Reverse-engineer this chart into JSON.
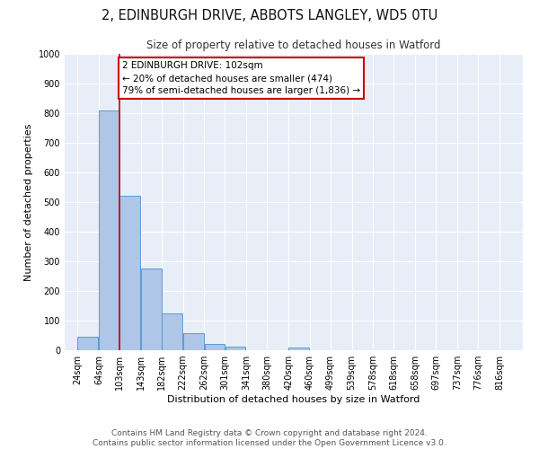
{
  "title": "2, EDINBURGH DRIVE, ABBOTS LANGLEY, WD5 0TU",
  "subtitle": "Size of property relative to detached houses in Watford",
  "xlabel": "Distribution of detached houses by size in Watford",
  "ylabel": "Number of detached properties",
  "bin_labels": [
    "24sqm",
    "64sqm",
    "103sqm",
    "143sqm",
    "182sqm",
    "222sqm",
    "262sqm",
    "301sqm",
    "341sqm",
    "380sqm",
    "420sqm",
    "460sqm",
    "499sqm",
    "539sqm",
    "578sqm",
    "618sqm",
    "658sqm",
    "697sqm",
    "737sqm",
    "776sqm",
    "816sqm"
  ],
  "bin_edges": [
    24,
    64,
    103,
    143,
    182,
    222,
    262,
    301,
    341,
    380,
    420,
    460,
    499,
    539,
    578,
    618,
    658,
    697,
    737,
    776,
    816
  ],
  "bar_heights": [
    46,
    810,
    520,
    275,
    125,
    57,
    22,
    12,
    0,
    0,
    8,
    0,
    0,
    0,
    0,
    0,
    0,
    0,
    0,
    0
  ],
  "bar_color": "#aec6e8",
  "bar_edge_color": "#5b9bd5",
  "red_line_x": 103,
  "annotation_text": "2 EDINBURGH DRIVE: 102sqm\n← 20% of detached houses are smaller (474)\n79% of semi-detached houses are larger (1,836) →",
  "annotation_box_color": "#ffffff",
  "annotation_box_edge": "#cc0000",
  "red_line_color": "#cc0000",
  "ylim": [
    0,
    1000
  ],
  "yticks": [
    0,
    100,
    200,
    300,
    400,
    500,
    600,
    700,
    800,
    900,
    1000
  ],
  "background_color": "#ffffff",
  "plot_bg_color": "#e8eef8",
  "grid_color": "#ffffff",
  "footer_line1": "Contains HM Land Registry data © Crown copyright and database right 2024.",
  "footer_line2": "Contains public sector information licensed under the Open Government Licence v3.0.",
  "title_fontsize": 10.5,
  "subtitle_fontsize": 8.5,
  "axis_label_fontsize": 8,
  "tick_fontsize": 7,
  "footer_fontsize": 6.5,
  "annotation_fontsize": 7.5
}
